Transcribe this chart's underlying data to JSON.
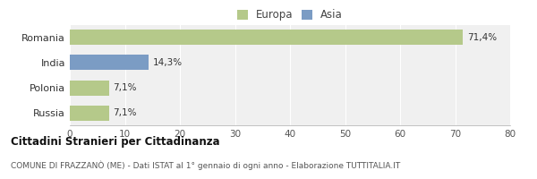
{
  "categories": [
    "Romania",
    "India",
    "Polonia",
    "Russia"
  ],
  "values": [
    71.4,
    14.3,
    7.1,
    7.1
  ],
  "bar_colors": [
    "#b5c98a",
    "#7b9cc4",
    "#b5c98a",
    "#b5c98a"
  ],
  "bar_labels": [
    "71,4%",
    "14,3%",
    "7,1%",
    "7,1%"
  ],
  "legend_labels": [
    "Europa",
    "Asia"
  ],
  "legend_colors": [
    "#b5c98a",
    "#7b9cc4"
  ],
  "xlim": [
    0,
    80
  ],
  "xticks": [
    0,
    10,
    20,
    30,
    40,
    50,
    60,
    70,
    80
  ],
  "title_bold": "Cittadini Stranieri per Cittadinanza",
  "subtitle": "COMUNE DI FRAZZANÒ (ME) - Dati ISTAT al 1° gennaio di ogni anno - Elaborazione TUTTITALIA.IT",
  "background_color": "#ffffff",
  "plot_bg_color": "#f0f0f0"
}
